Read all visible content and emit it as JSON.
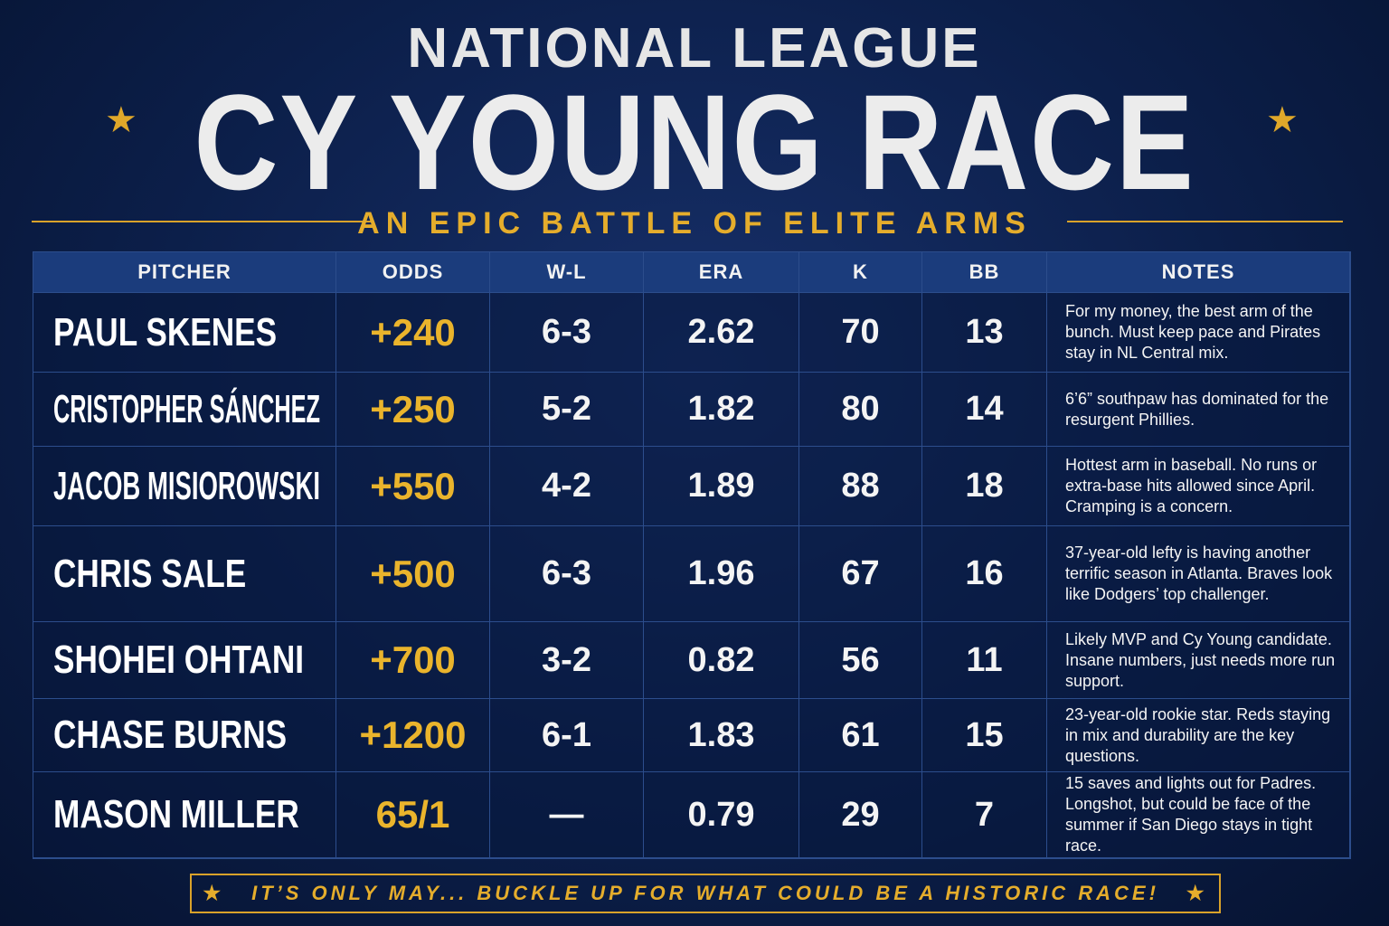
{
  "header": {
    "title_top": "NATIONAL LEAGUE",
    "title_main": "CY YOUNG RACE",
    "subtitle": "AN EPIC BATTLE OF ELITE ARMS"
  },
  "table": {
    "columns": [
      "PITCHER",
      "ODDS",
      "W-L",
      "ERA",
      "K",
      "BB",
      "NOTES"
    ],
    "rows": [
      [
        "PAUL SKENES",
        "+240",
        "6-3",
        "2.62",
        "70",
        "13",
        "For my money, the best arm of the bunch. Must keep pace and Pirates stay in NL Central mix."
      ],
      [
        "CRISTOPHER SÁNCHEZ",
        "+250",
        "5-2",
        "1.82",
        "80",
        "14",
        "6’6” southpaw has dominated for the resurgent Phillies."
      ],
      [
        "JACOB MISIOROWSKI",
        "+550",
        "4-2",
        "1.89",
        "88",
        "18",
        "Hottest arm in baseball. No runs or extra-base hits allowed since April. Cramping is a concern."
      ],
      [
        "CHRIS SALE",
        "+500",
        "6-3",
        "1.96",
        "67",
        "16",
        "37-year-old lefty is having another terrific season in Atlanta. Braves look like Dodgers’ top challenger."
      ],
      [
        "SHOHEI OHTANI",
        "+700",
        "3-2",
        "0.82",
        "56",
        "11",
        "Likely MVP and Cy Young candidate. Insane numbers, just needs more run support."
      ],
      [
        "CHASE BURNS",
        "+1200",
        "6-1",
        "1.83",
        "61",
        "15",
        "23-year-old rookie star. Reds staying in mix and durability are the key questions."
      ],
      [
        "MASON MILLER",
        "65/1",
        "—",
        "0.79",
        "29",
        "7",
        "15 saves and lights out for Padres. Longshot, but could be face of the summer if San Diego stays in tight race."
      ]
    ]
  },
  "footer": {
    "text": "IT’S ONLY MAY... BUCKLE UP FOR WHAT COULD BE A HISTORIC RACE!"
  }
}
